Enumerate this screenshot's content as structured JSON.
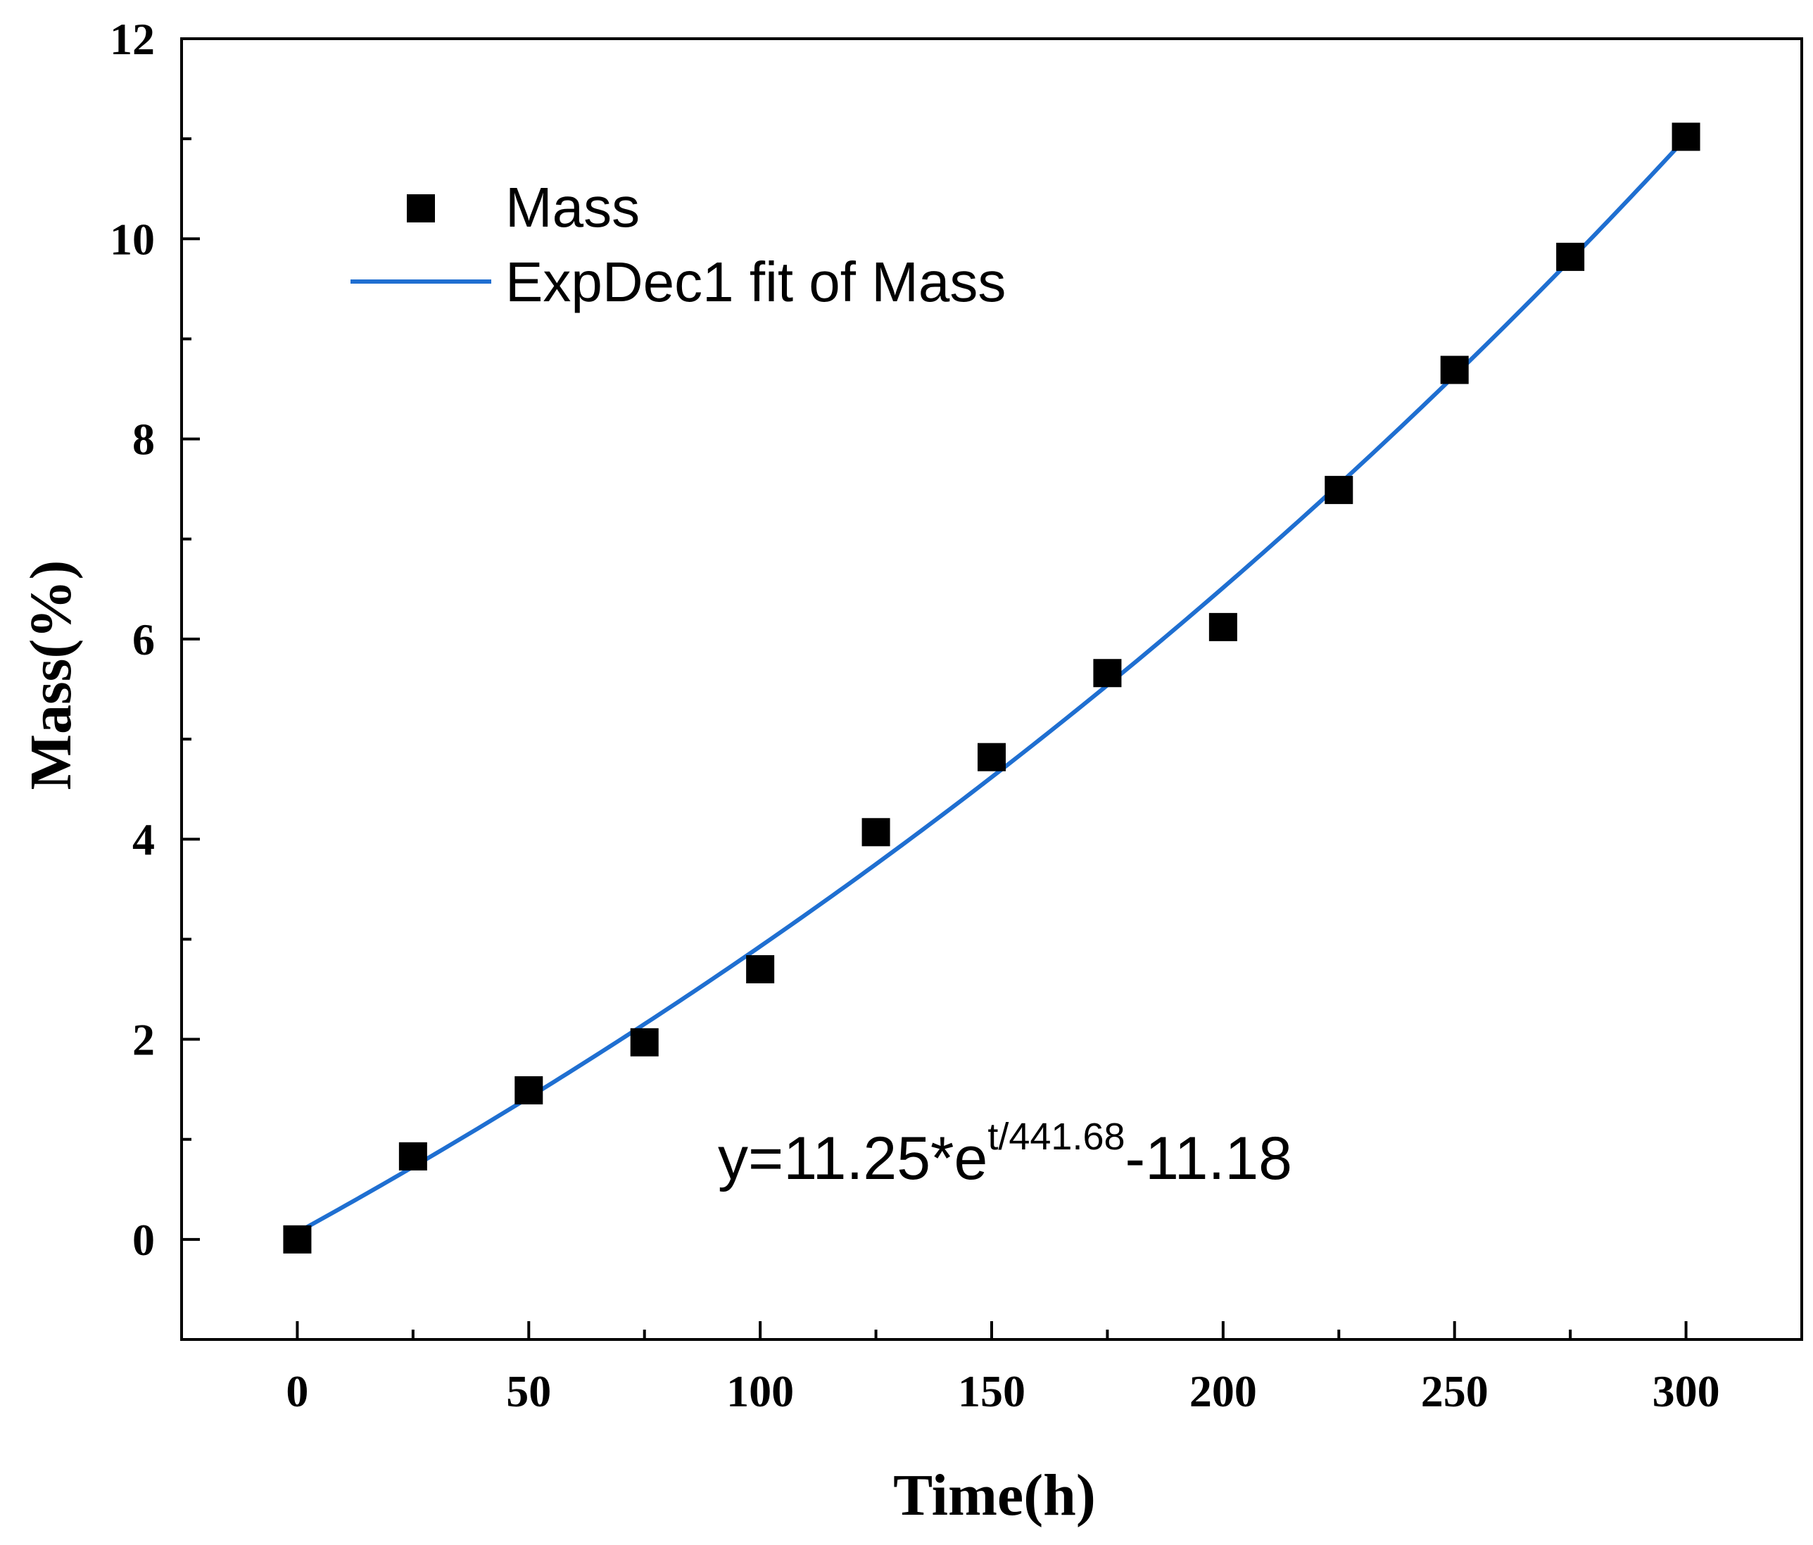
{
  "chart_data": {
    "type": "scatter",
    "title": "",
    "xlabel": "Time(h)",
    "ylabel": "Mass(%)",
    "xlim": [
      -25,
      325
    ],
    "ylim": [
      -1,
      12
    ],
    "xticks": [
      0,
      50,
      100,
      150,
      200,
      250,
      300
    ],
    "yticks": [
      0,
      2,
      4,
      6,
      8,
      10,
      12
    ],
    "series": [
      {
        "name": "Mass",
        "kind": "scatter",
        "marker": "square",
        "color": "#000000",
        "x": [
          0,
          25,
          50,
          75,
          100,
          125,
          150,
          175,
          200,
          225,
          250,
          275,
          300
        ],
        "y": [
          0.0,
          0.83,
          1.49,
          1.97,
          2.7,
          4.07,
          4.82,
          5.66,
          6.12,
          7.49,
          8.69,
          9.82,
          11.02
        ]
      },
      {
        "name": "ExpDec1 fit of Mass",
        "kind": "line",
        "color": "#1f6fd1",
        "model": {
          "A": 11.25,
          "t": 441.68,
          "y0": -11.18
        }
      }
    ],
    "legend": {
      "placement": "top-left",
      "entries": [
        "Mass",
        "ExpDec1 fit of Mass"
      ]
    },
    "annotation": {
      "prefix": "y=11.25*e",
      "superscript": "t/441.68",
      "suffix": "-11.18"
    }
  }
}
